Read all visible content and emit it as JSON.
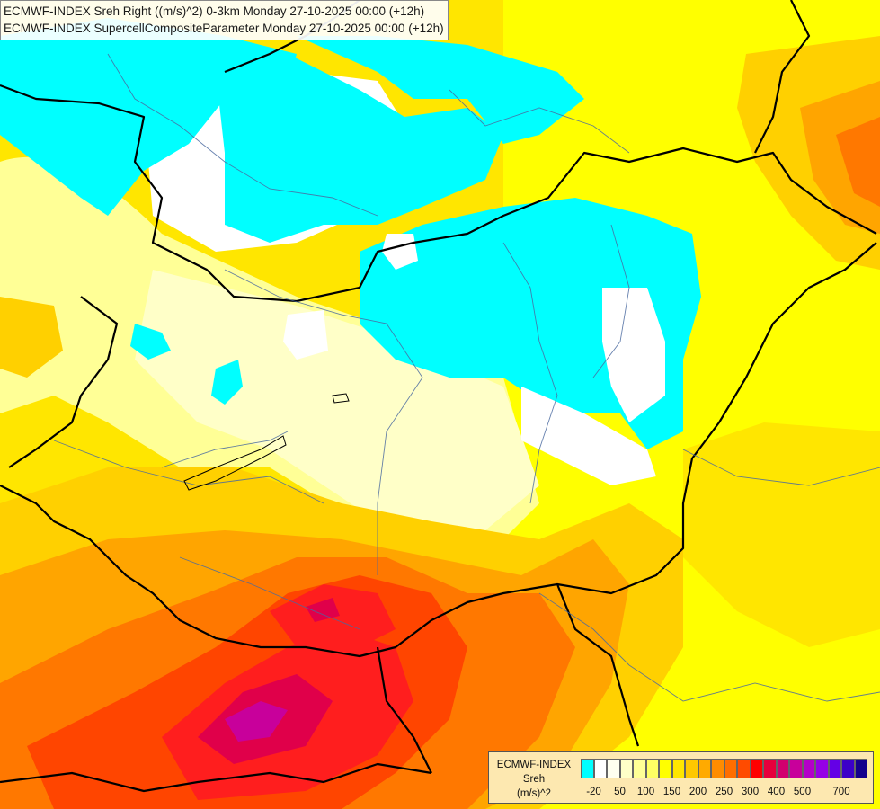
{
  "title_lines": [
    "ECMWF-INDEX Sreh Right ((m/s)^2) 0-3km Monday 27-10-2025 00:00 (+12h)",
    "ECMWF-INDEX SupercellCompositeParameter Monday 27-10-2025 00:00 (+12h)"
  ],
  "legend": {
    "title_lines": [
      "ECMWF-INDEX",
      "Sreh",
      "(m/s)^2"
    ],
    "colors": [
      "#00ffff",
      "#ffffff",
      "#fffff0",
      "#ffffc8",
      "#ffff96",
      "#ffff64",
      "#ffff00",
      "#ffe600",
      "#ffc800",
      "#ffaa00",
      "#ff8c00",
      "#ff6e00",
      "#ff4b00",
      "#ff0000",
      "#e6003c",
      "#d2006e",
      "#c8009b",
      "#b400c8",
      "#9600e6",
      "#6400e6",
      "#3c00c8",
      "#14008c"
    ],
    "ticks": [
      "-20",
      "50",
      "100",
      "150",
      "200",
      "250",
      "300",
      "400",
      "500",
      "700"
    ],
    "tick_index": [
      1,
      3,
      5,
      7,
      9,
      11,
      13,
      15,
      17,
      20
    ]
  },
  "map_colors": {
    "cyan": "#00ffff",
    "white": "#ffffff",
    "light_yellow": "#ffffc8",
    "pale_yellow": "#ffff96",
    "yellow": "#ffff00",
    "gold": "#ffd000",
    "orange": "#ffa500",
    "dark_orange": "#ff7800",
    "red_orange": "#ff4500",
    "red": "#ff1e1e",
    "crimson": "#e0004a",
    "magenta": "#c8009b"
  }
}
